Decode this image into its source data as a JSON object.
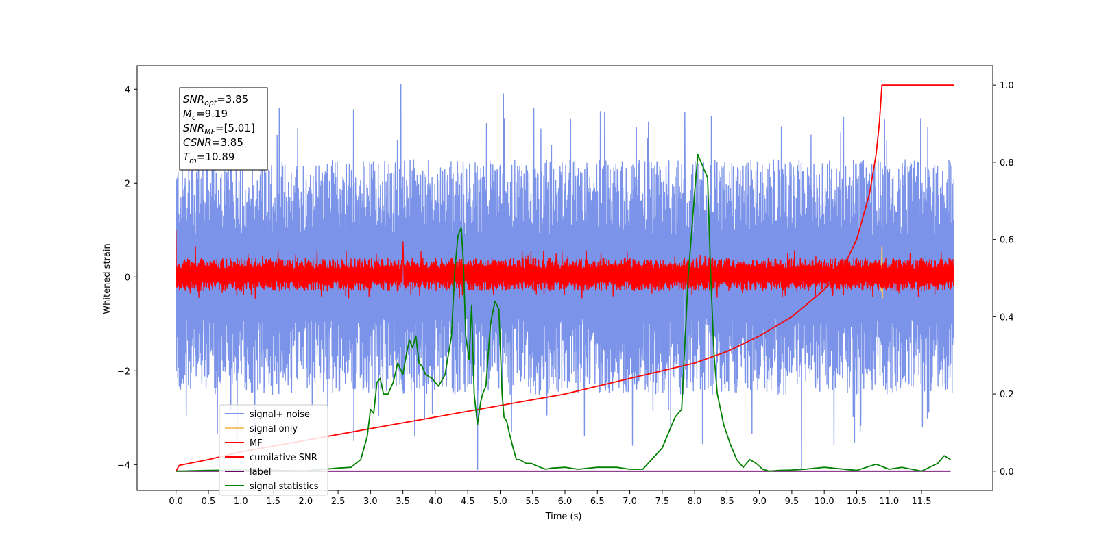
{
  "chart_data": {
    "type": "line",
    "xlabel": "Time (s)",
    "ylabel": "Whitened strain",
    "xlim": [
      -0.6,
      12.6
    ],
    "ylim": [
      -4.55,
      4.5
    ],
    "y2lim": [
      -0.05,
      1.05
    ],
    "x_ticks": [
      "0.0",
      "0.5",
      "1.0",
      "1.5",
      "2.0",
      "2.5",
      "3.0",
      "3.5",
      "4.0",
      "4.5",
      "5.0",
      "5.5",
      "6.0",
      "6.5",
      "7.0",
      "7.5",
      "8.0",
      "8.5",
      "9.0",
      "9.5",
      "10.0",
      "10.5",
      "11.0",
      "11.5"
    ],
    "y_ticks": [
      "4",
      "2",
      "0",
      "−2",
      "−4"
    ],
    "y2_ticks": [
      "1.0",
      "0.8",
      "0.6",
      "0.4",
      "0.2",
      "0.0"
    ],
    "legend_position": "lower-left",
    "info_box": {
      "lines": [
        {
          "base": "SNR",
          "sub": "opt",
          "value": "=3.85"
        },
        {
          "base": "M",
          "sub": "c",
          "value": "=9.19"
        },
        {
          "base": "SNR",
          "sub": "MF",
          "value": "=[5.01]"
        },
        {
          "base": "CSNR",
          "sub": "",
          "value": "=3.85"
        },
        {
          "base": "T",
          "sub": "m",
          "value": "=10.89"
        }
      ]
    },
    "series": [
      {
        "name": "signal+ noise",
        "color": "#7b93e8",
        "axis": "left",
        "style": "noise",
        "x_range": [
          0.0,
          12.0
        ],
        "envelope_upper": 2.5,
        "envelope_lower": -2.5,
        "peaks": [
          [
            3.47,
            4.1
          ],
          [
            5.05,
            3.9
          ],
          [
            4.65,
            -4.1
          ],
          [
            9.65,
            -4.1
          ],
          [
            10.3,
            3.4
          ],
          [
            7.85,
            3.5
          ]
        ]
      },
      {
        "name": "signal only",
        "color": "#f5c46b",
        "axis": "left",
        "style": "chirp",
        "x": [
          10.75,
          10.82,
          10.86,
          10.88,
          10.89,
          10.9
        ],
        "y": [
          0.05,
          -0.1,
          0.2,
          -0.3,
          0.65,
          -0.45
        ]
      },
      {
        "name": "MF",
        "color": "#ff0000",
        "axis": "left",
        "style": "noise",
        "x_range": [
          0.0,
          12.0
        ],
        "envelope_upper": 0.4,
        "envelope_lower": -0.3,
        "peaks": [
          [
            0.0,
            1.0
          ],
          [
            3.5,
            0.75
          ],
          [
            0.3,
            0.65
          ]
        ]
      },
      {
        "name": "cumilative SNR",
        "color": "#ff0000",
        "axis": "right",
        "style": "line",
        "x": [
          0.0,
          0.05,
          0.5,
          1.0,
          2.0,
          3.0,
          4.0,
          5.0,
          6.0,
          7.0,
          8.0,
          8.5,
          9.0,
          9.5,
          10.0,
          10.3,
          10.5,
          10.7,
          10.8,
          10.85,
          10.89,
          11.0,
          11.5,
          12.0
        ],
        "y": [
          0.0,
          0.015,
          0.03,
          0.05,
          0.08,
          0.11,
          0.14,
          0.17,
          0.2,
          0.24,
          0.28,
          0.31,
          0.35,
          0.4,
          0.47,
          0.53,
          0.6,
          0.72,
          0.82,
          0.9,
          1.0,
          1.0,
          1.0,
          1.0
        ]
      },
      {
        "name": "label",
        "color": "#6a006a",
        "axis": "right",
        "style": "line",
        "x": [
          0.0,
          11.95
        ],
        "y": [
          0.0,
          0.0
        ]
      },
      {
        "name": "signal statistics",
        "color": "#008000",
        "axis": "right",
        "style": "line",
        "x": [
          0.0,
          0.5,
          1.0,
          1.5,
          2.0,
          2.5,
          2.7,
          2.85,
          2.95,
          3.0,
          3.05,
          3.1,
          3.15,
          3.2,
          3.27,
          3.35,
          3.42,
          3.5,
          3.55,
          3.6,
          3.65,
          3.7,
          3.75,
          3.8,
          3.85,
          3.95,
          4.05,
          4.15,
          4.25,
          4.3,
          4.35,
          4.4,
          4.43,
          4.47,
          4.52,
          4.56,
          4.6,
          4.65,
          4.7,
          4.73,
          4.78,
          4.85,
          4.92,
          4.98,
          5.03,
          5.06,
          5.1,
          5.14,
          5.2,
          5.25,
          5.3,
          5.4,
          5.48,
          5.55,
          5.62,
          5.7,
          5.8,
          6.0,
          6.2,
          6.5,
          6.8,
          7.0,
          7.2,
          7.5,
          7.7,
          7.8,
          7.9,
          8.0,
          8.05,
          8.1,
          8.2,
          8.25,
          8.3,
          8.35,
          8.45,
          8.55,
          8.65,
          8.75,
          8.85,
          8.95,
          9.05,
          9.15,
          9.3,
          9.5,
          9.7,
          10.0,
          10.5,
          10.8,
          11.0,
          11.2,
          11.5,
          11.75,
          11.85,
          11.95
        ],
        "y": [
          0.0,
          0.002,
          0.003,
          0.002,
          0.001,
          0.008,
          0.01,
          0.03,
          0.09,
          0.16,
          0.15,
          0.23,
          0.24,
          0.2,
          0.2,
          0.23,
          0.28,
          0.25,
          0.3,
          0.34,
          0.32,
          0.35,
          0.28,
          0.27,
          0.25,
          0.24,
          0.22,
          0.25,
          0.35,
          0.52,
          0.61,
          0.63,
          0.55,
          0.35,
          0.29,
          0.43,
          0.2,
          0.12,
          0.18,
          0.2,
          0.22,
          0.38,
          0.44,
          0.42,
          0.2,
          0.14,
          0.13,
          0.1,
          0.06,
          0.03,
          0.03,
          0.02,
          0.02,
          0.015,
          0.01,
          0.005,
          0.008,
          0.01,
          0.005,
          0.01,
          0.01,
          0.005,
          0.005,
          0.06,
          0.14,
          0.16,
          0.5,
          0.72,
          0.82,
          0.8,
          0.76,
          0.5,
          0.3,
          0.2,
          0.12,
          0.07,
          0.03,
          0.01,
          0.03,
          0.02,
          0.005,
          0.0,
          0.002,
          0.003,
          0.005,
          0.01,
          0.002,
          0.018,
          0.005,
          0.01,
          0.0,
          0.02,
          0.04,
          0.03
        ]
      }
    ]
  }
}
